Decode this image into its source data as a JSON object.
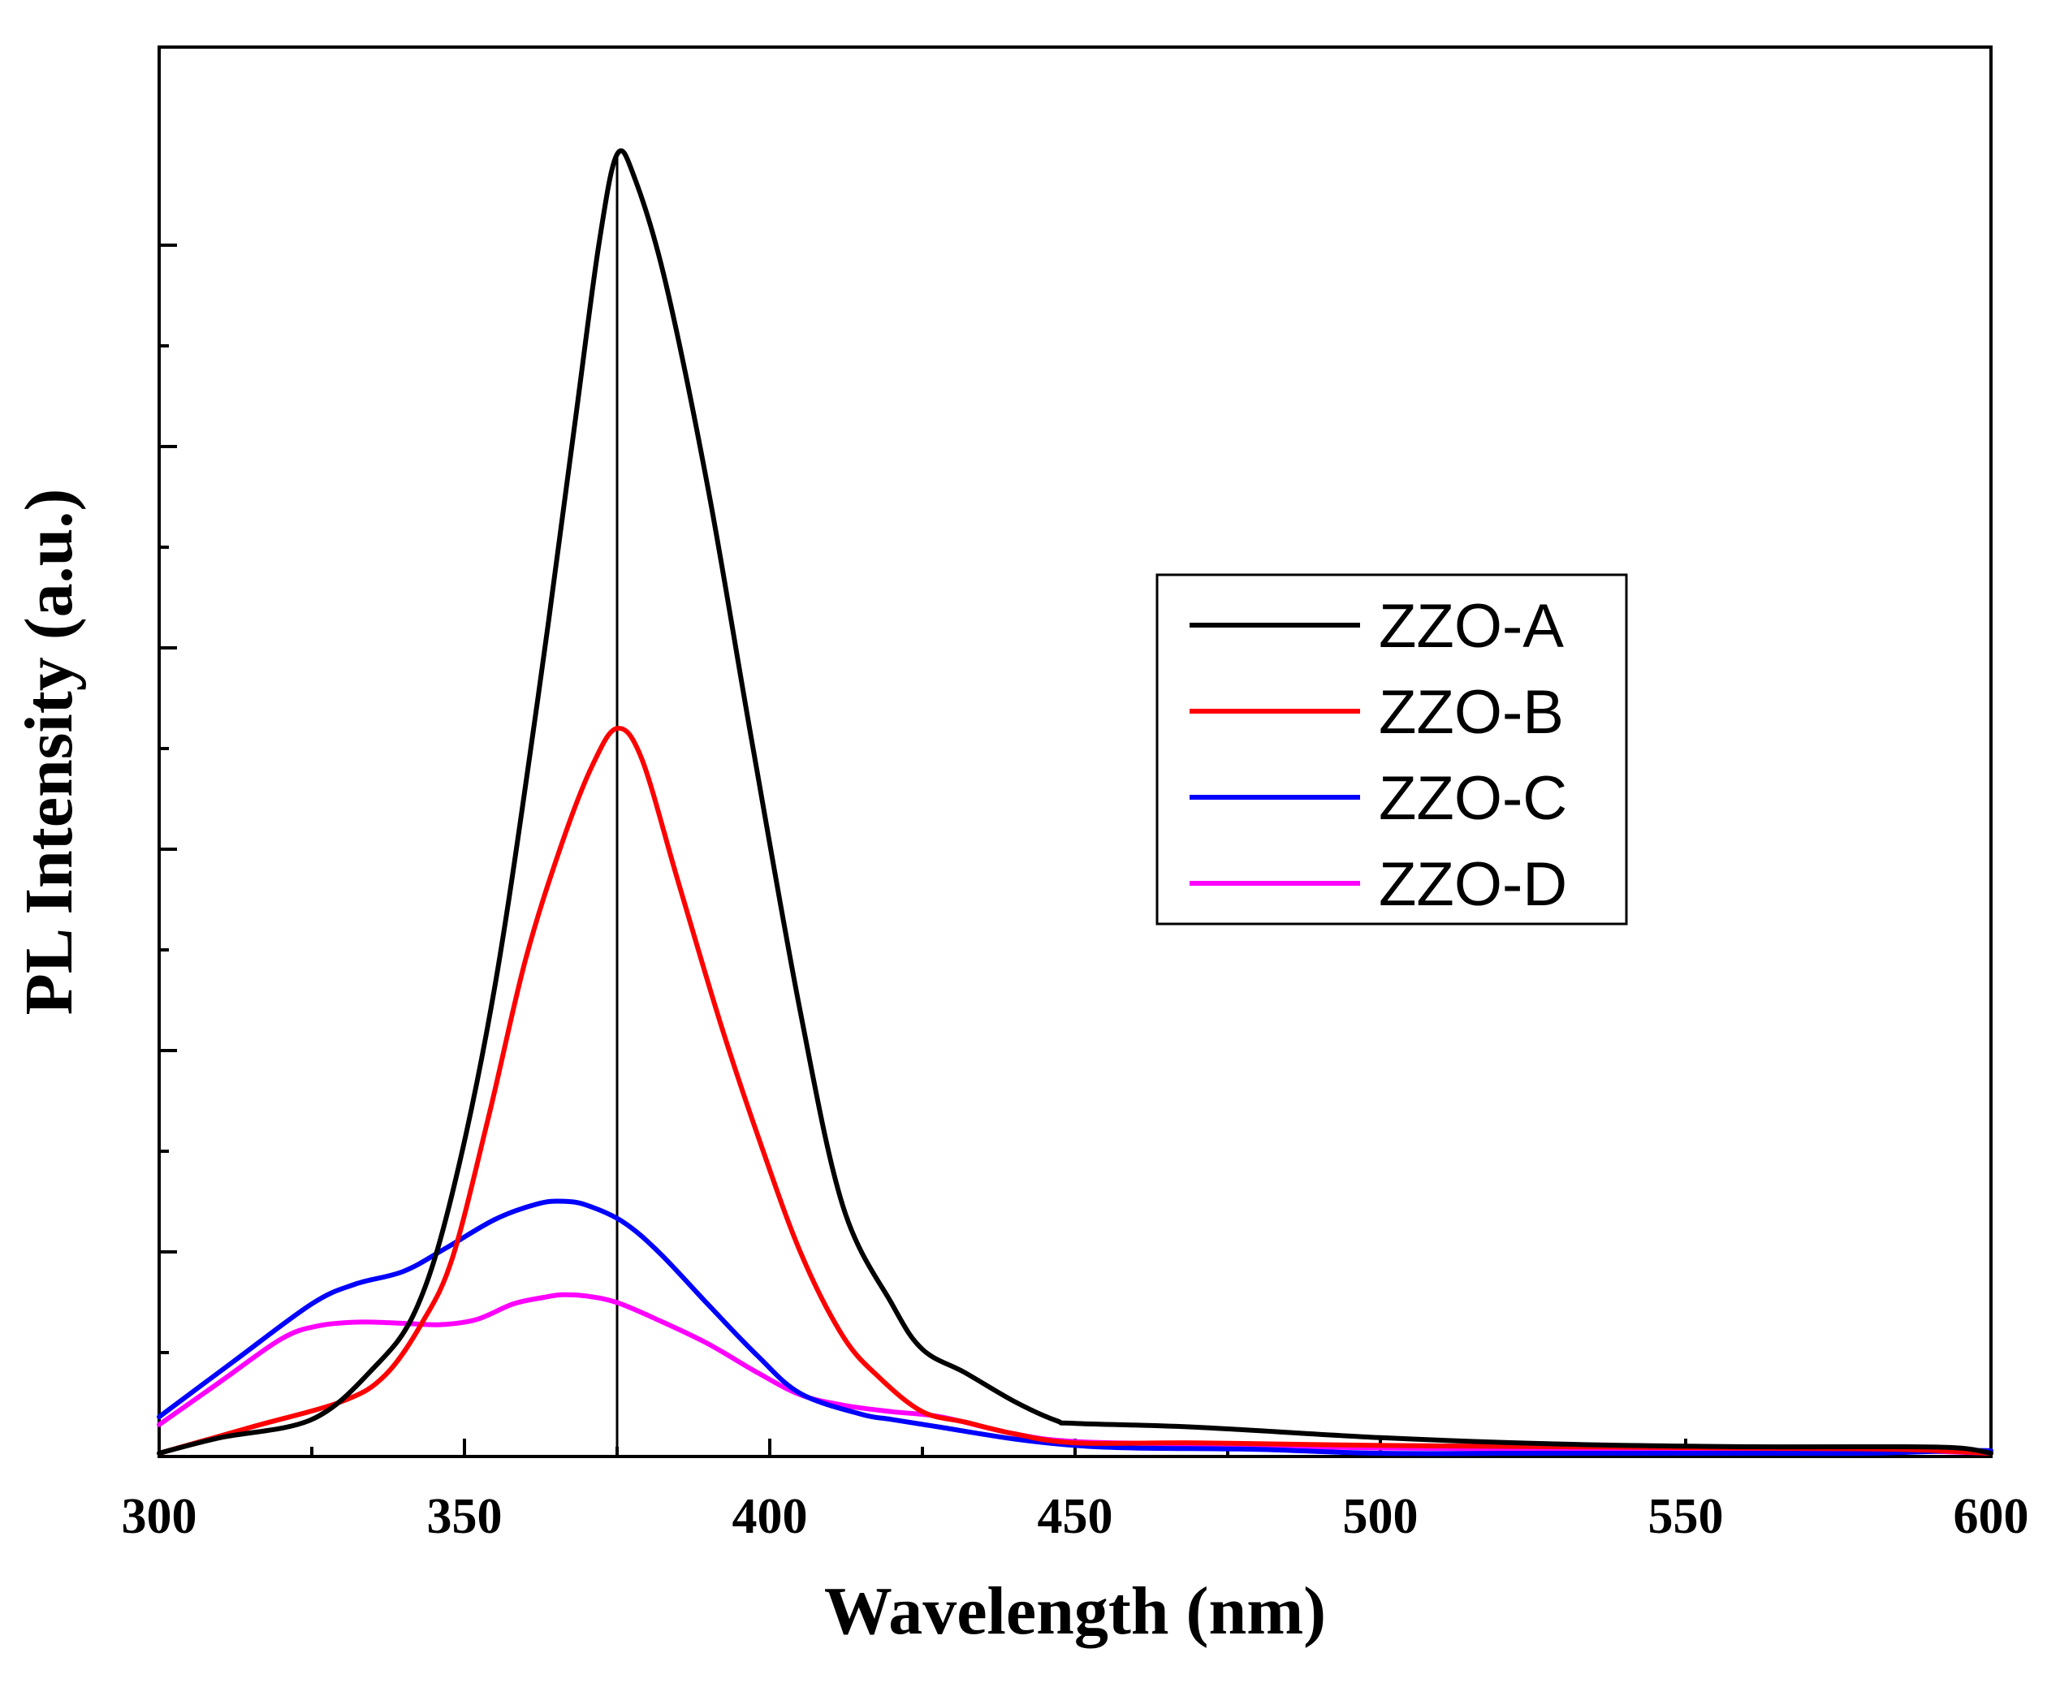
{
  "chart_data": {
    "type": "line",
    "title": "",
    "xlabel": "Wavelength (nm)",
    "ylabel": "PL Intensity (a.u.)",
    "xlim": [
      300,
      600
    ],
    "ylim": [
      0,
      100
    ],
    "x_ticks": [
      300,
      350,
      400,
      450,
      500,
      550,
      600
    ],
    "x_tick_labels": [
      "300",
      "350",
      "400",
      "450",
      "500",
      "550",
      "600"
    ],
    "y_ticks_major": [
      15.5,
      31,
      46.5,
      62,
      77.5,
      93
    ],
    "y_ticks_minor": [
      7.75,
      23.25,
      38.75,
      54.25,
      69.75,
      85.25
    ],
    "y_tick_labels_shown": false,
    "reference_line_x": 375,
    "legend": {
      "position": "right-center",
      "entries": [
        "ZZO-A",
        "ZZO-B",
        "ZZO-C",
        "ZZO-D"
      ]
    },
    "series": [
      {
        "name": "ZZO-A",
        "color": "#000000",
        "points": [
          [
            300,
            0
          ],
          [
            310,
            1.2
          ],
          [
            325,
            2.6
          ],
          [
            335,
            6.5
          ],
          [
            342,
            11
          ],
          [
            348,
            20
          ],
          [
            355,
            36
          ],
          [
            362,
            58
          ],
          [
            368,
            79
          ],
          [
            372,
            93
          ],
          [
            375,
            100
          ],
          [
            378,
            98
          ],
          [
            383,
            90
          ],
          [
            390,
            74
          ],
          [
            397,
            55
          ],
          [
            405,
            34
          ],
          [
            412,
            19
          ],
          [
            420,
            11.5
          ],
          [
            425,
            8
          ],
          [
            432,
            6.2
          ],
          [
            440,
            4
          ],
          [
            447,
            2.5
          ],
          [
            450,
            2.3
          ],
          [
            470,
            2
          ],
          [
            500,
            1.2
          ],
          [
            530,
            0.7
          ],
          [
            560,
            0.5
          ],
          [
            585,
            0.5
          ],
          [
            595,
            0.4
          ],
          [
            600,
            0
          ]
        ]
      },
      {
        "name": "ZZO-B",
        "color": "#ff0000",
        "points": [
          [
            300,
            0
          ],
          [
            315,
            2
          ],
          [
            330,
            4
          ],
          [
            337,
            6
          ],
          [
            343,
            10
          ],
          [
            348,
            15
          ],
          [
            354,
            26
          ],
          [
            360,
            38
          ],
          [
            366,
            47
          ],
          [
            371,
            53
          ],
          [
            375,
            55.8
          ],
          [
            379,
            53.5
          ],
          [
            385,
            44
          ],
          [
            392,
            33
          ],
          [
            398,
            24.5
          ],
          [
            405,
            15.5
          ],
          [
            412,
            9
          ],
          [
            418,
            5.8
          ],
          [
            425,
            3.2
          ],
          [
            432,
            2.4
          ],
          [
            440,
            1.5
          ],
          [
            450,
            0.8
          ],
          [
            470,
            0.8
          ],
          [
            500,
            0.6
          ],
          [
            530,
            0.5
          ],
          [
            560,
            0.4
          ],
          [
            585,
            0.3
          ],
          [
            600,
            0
          ]
        ]
      },
      {
        "name": "ZZO-C",
        "color": "#0000ff",
        "points": [
          [
            300,
            2.8
          ],
          [
            312,
            7
          ],
          [
            325,
            11.5
          ],
          [
            332,
            13
          ],
          [
            340,
            14
          ],
          [
            347,
            15.8
          ],
          [
            355,
            18
          ],
          [
            362,
            19.2
          ],
          [
            366,
            19.4
          ],
          [
            370,
            19.1
          ],
          [
            376,
            17.8
          ],
          [
            382,
            15.4
          ],
          [
            390,
            11.4
          ],
          [
            398,
            7.5
          ],
          [
            405,
            4.6
          ],
          [
            415,
            3
          ],
          [
            420,
            2.6
          ],
          [
            428,
            2
          ],
          [
            440,
            1.1
          ],
          [
            450,
            0.6
          ],
          [
            460,
            0.4
          ],
          [
            480,
            0.3
          ],
          [
            500,
            0
          ],
          [
            530,
            0
          ],
          [
            560,
            0
          ],
          [
            580,
            0
          ],
          [
            595,
            0.2
          ],
          [
            600,
            0.2
          ]
        ]
      },
      {
        "name": "ZZO-D",
        "color": "#ff00ff",
        "points": [
          [
            300,
            2.2
          ],
          [
            310,
            5.5
          ],
          [
            320,
            8.8
          ],
          [
            326,
            9.8
          ],
          [
            333,
            10.1
          ],
          [
            340,
            10
          ],
          [
            346,
            9.9
          ],
          [
            352,
            10.3
          ],
          [
            358,
            11.5
          ],
          [
            363,
            12
          ],
          [
            366,
            12.2
          ],
          [
            370,
            12.1
          ],
          [
            375,
            11.6
          ],
          [
            382,
            10.2
          ],
          [
            390,
            8.4
          ],
          [
            398,
            6.2
          ],
          [
            405,
            4.5
          ],
          [
            412,
            3.7
          ],
          [
            420,
            3.2
          ],
          [
            428,
            2.8
          ],
          [
            440,
            1.5
          ],
          [
            450,
            0.9
          ],
          [
            470,
            0.7
          ],
          [
            500,
            0.4
          ],
          [
            530,
            0.3
          ],
          [
            560,
            0.3
          ],
          [
            585,
            0.2
          ],
          [
            600,
            0
          ]
        ]
      }
    ]
  }
}
